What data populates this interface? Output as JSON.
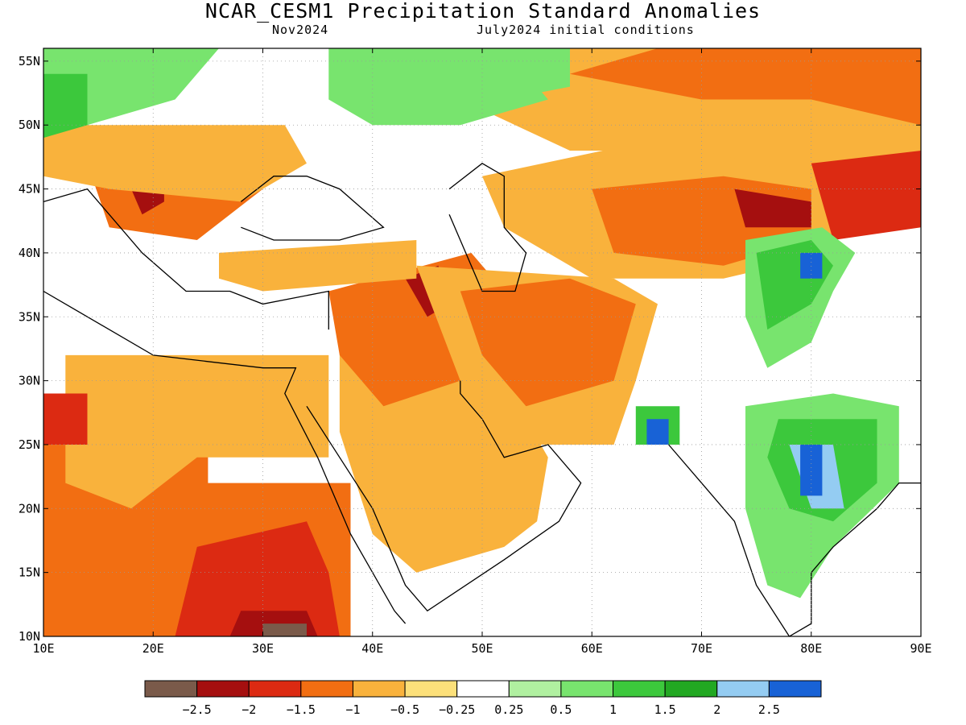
{
  "title": "NCAR_CESM1 Precipitation Standard Anomalies",
  "subtitle_left": "Nov2024",
  "subtitle_right": "July2024 initial conditions",
  "map": {
    "lon_range": [
      10,
      90
    ],
    "lat_range": [
      10,
      56
    ],
    "lon_ticks": [
      "10E",
      "20E",
      "30E",
      "40E",
      "50E",
      "60E",
      "70E",
      "80E",
      "90E"
    ],
    "lat_ticks": [
      "55N",
      "50N",
      "45N",
      "40N",
      "35N",
      "30N",
      "25N",
      "20N",
      "15N",
      "10N"
    ],
    "grid": true
  },
  "colors": {
    "brown": "#7a5a4a",
    "darkred": "#a50f0f",
    "red": "#dc2a12",
    "orange": "#f26e12",
    "lightorange": "#f9b23c",
    "yellow": "#fce07a",
    "white": "#ffffff",
    "lightgreen": "#b0f0a0",
    "green1": "#78e46e",
    "green2": "#3cc83c",
    "green3": "#22a822",
    "lightblue": "#94ccf2",
    "blue": "#1862d6"
  },
  "legend": {
    "swatches": [
      "#7a5a4a",
      "#a50f0f",
      "#dc2a12",
      "#f26e12",
      "#f9b23c",
      "#fce07a",
      "#ffffff",
      "#b0f0a0",
      "#78e46e",
      "#3cc83c",
      "#22a822",
      "#94ccf2",
      "#1862d6"
    ],
    "labels": [
      "−2.5",
      "−2",
      "−1.5",
      "−1",
      "−0.5",
      "−0.25",
      "0.25",
      "0.5",
      "1",
      "1.5",
      "2",
      "2.5"
    ]
  },
  "regions": [
    {
      "name": "west-africa-orange",
      "color": "orange",
      "pts": [
        [
          10,
          29
        ],
        [
          25,
          29
        ],
        [
          25,
          22
        ],
        [
          38,
          22
        ],
        [
          38,
          10
        ],
        [
          10,
          10
        ]
      ]
    },
    {
      "name": "sahara-lightorange",
      "color": "lightorange",
      "pts": [
        [
          12,
          32
        ],
        [
          36,
          32
        ],
        [
          36,
          24
        ],
        [
          24,
          24
        ],
        [
          18,
          20
        ],
        [
          12,
          22
        ]
      ]
    },
    {
      "name": "east-africa-red",
      "color": "red",
      "pts": [
        [
          24,
          17
        ],
        [
          34,
          19
        ],
        [
          36,
          15
        ],
        [
          37,
          10
        ],
        [
          22,
          10
        ]
      ]
    },
    {
      "name": "libya-red",
      "color": "red",
      "pts": [
        [
          10,
          29
        ],
        [
          14,
          29
        ],
        [
          14,
          25
        ],
        [
          10,
          25
        ]
      ]
    },
    {
      "name": "sudan-darkred",
      "color": "darkred",
      "pts": [
        [
          28,
          12
        ],
        [
          34,
          12
        ],
        [
          35,
          10
        ],
        [
          27,
          10
        ]
      ]
    },
    {
      "name": "sudan-brown",
      "color": "brown",
      "pts": [
        [
          30,
          11
        ],
        [
          34,
          11
        ],
        [
          34,
          10
        ],
        [
          30,
          10
        ]
      ]
    },
    {
      "name": "arabia-lightorange",
      "color": "lightorange",
      "pts": [
        [
          37,
          34
        ],
        [
          52,
          34
        ],
        [
          54,
          27
        ],
        [
          56,
          24
        ],
        [
          55,
          19
        ],
        [
          52,
          17
        ],
        [
          44,
          15
        ],
        [
          40,
          18
        ],
        [
          37,
          26
        ]
      ]
    },
    {
      "name": "levant-orange",
      "color": "orange",
      "pts": [
        [
          36,
          37
        ],
        [
          49,
          40
        ],
        [
          52,
          37
        ],
        [
          48,
          30
        ],
        [
          41,
          28
        ],
        [
          37,
          32
        ]
      ]
    },
    {
      "name": "iraq-darkred",
      "color": "darkred",
      "pts": [
        [
          43,
          38
        ],
        [
          46,
          39
        ],
        [
          47,
          36
        ],
        [
          45,
          35
        ]
      ]
    },
    {
      "name": "iran-lightorange",
      "color": "lightorange",
      "pts": [
        [
          44,
          39
        ],
        [
          62,
          38
        ],
        [
          66,
          36
        ],
        [
          64,
          30
        ],
        [
          62,
          25
        ],
        [
          50,
          25
        ],
        [
          48,
          30
        ]
      ]
    },
    {
      "name": "iran-orange",
      "color": "orange",
      "pts": [
        [
          48,
          37
        ],
        [
          58,
          38
        ],
        [
          64,
          36
        ],
        [
          62,
          30
        ],
        [
          54,
          28
        ],
        [
          50,
          32
        ]
      ]
    },
    {
      "name": "central-asia-lightorange",
      "color": "lightorange",
      "pts": [
        [
          50,
          46
        ],
        [
          72,
          50
        ],
        [
          82,
          48
        ],
        [
          82,
          40
        ],
        [
          72,
          38
        ],
        [
          60,
          38
        ],
        [
          52,
          42
        ]
      ]
    },
    {
      "name": "kazakhstan-orange",
      "color": "orange",
      "pts": [
        [
          60,
          45
        ],
        [
          72,
          46
        ],
        [
          80,
          45
        ],
        [
          80,
          41
        ],
        [
          72,
          39
        ],
        [
          62,
          40
        ]
      ]
    },
    {
      "name": "kazakhstan-darkred",
      "color": "darkred",
      "pts": [
        [
          73,
          45
        ],
        [
          80,
          44
        ],
        [
          80,
          42
        ],
        [
          74,
          42
        ]
      ]
    },
    {
      "name": "siberia-lightorange",
      "color": "lightorange",
      "pts": [
        [
          48,
          52
        ],
        [
          55,
          56
        ],
        [
          90,
          56
        ],
        [
          90,
          46
        ],
        [
          80,
          46
        ],
        [
          70,
          48
        ],
        [
          58,
          48
        ]
      ]
    },
    {
      "name": "siberia-orange",
      "color": "orange",
      "pts": [
        [
          58,
          54
        ],
        [
          66,
          56
        ],
        [
          90,
          56
        ],
        [
          90,
          50
        ],
        [
          80,
          52
        ],
        [
          70,
          52
        ]
      ]
    },
    {
      "name": "western-china-red",
      "color": "red",
      "pts": [
        [
          80,
          47
        ],
        [
          90,
          48
        ],
        [
          90,
          42
        ],
        [
          82,
          41
        ]
      ]
    },
    {
      "name": "balkans-orange",
      "color": "orange",
      "pts": [
        [
          14,
          47
        ],
        [
          28,
          48
        ],
        [
          30,
          45
        ],
        [
          24,
          41
        ],
        [
          16,
          42
        ]
      ]
    },
    {
      "name": "balkans-darkred",
      "color": "darkred",
      "pts": [
        [
          18,
          45
        ],
        [
          21,
          46
        ],
        [
          21,
          44
        ],
        [
          19,
          43
        ]
      ]
    },
    {
      "name": "europe-lightorange",
      "color": "lightorange",
      "pts": [
        [
          10,
          50
        ],
        [
          32,
          50
        ],
        [
          34,
          47
        ],
        [
          28,
          44
        ],
        [
          16,
          45
        ],
        [
          10,
          46
        ]
      ]
    },
    {
      "name": "turkey-lightorange",
      "color": "lightorange",
      "pts": [
        [
          26,
          40
        ],
        [
          44,
          41
        ],
        [
          44,
          38
        ],
        [
          30,
          37
        ],
        [
          26,
          38
        ]
      ]
    },
    {
      "name": "europe-green",
      "color": "green1",
      "pts": [
        [
          10,
          56
        ],
        [
          26,
          56
        ],
        [
          22,
          52
        ],
        [
          14,
          50
        ],
        [
          10,
          51
        ]
      ]
    },
    {
      "name": "europe-green2",
      "color": "green2",
      "pts": [
        [
          10,
          54
        ],
        [
          14,
          54
        ],
        [
          14,
          50
        ],
        [
          10,
          49
        ]
      ]
    },
    {
      "name": "russia-green",
      "color": "green1",
      "pts": [
        [
          36,
          56
        ],
        [
          52,
          56
        ],
        [
          56,
          52
        ],
        [
          48,
          50
        ],
        [
          40,
          50
        ],
        [
          36,
          52
        ]
      ]
    },
    {
      "name": "russia-green-east",
      "color": "green1",
      "pts": [
        [
          50,
          56
        ],
        [
          58,
          56
        ],
        [
          58,
          53
        ],
        [
          52,
          52
        ]
      ]
    },
    {
      "name": "himalaya-green1",
      "color": "green1",
      "pts": [
        [
          74,
          41
        ],
        [
          81,
          42
        ],
        [
          84,
          40
        ],
        [
          82,
          37
        ],
        [
          80,
          33
        ],
        [
          76,
          31
        ],
        [
          74,
          35
        ]
      ]
    },
    {
      "name": "himalaya-green2",
      "color": "green2",
      "pts": [
        [
          75,
          40
        ],
        [
          80,
          41
        ],
        [
          82,
          39
        ],
        [
          80,
          36
        ],
        [
          76,
          34
        ]
      ]
    },
    {
      "name": "himalaya-blue",
      "color": "blue",
      "pts": [
        [
          79,
          40
        ],
        [
          81,
          40
        ],
        [
          81,
          38
        ],
        [
          79,
          38
        ]
      ]
    },
    {
      "name": "india-green1",
      "color": "green1",
      "pts": [
        [
          74,
          28
        ],
        [
          82,
          29
        ],
        [
          88,
          28
        ],
        [
          88,
          22
        ],
        [
          82,
          17
        ],
        [
          79,
          13
        ],
        [
          76,
          14
        ],
        [
          74,
          20
        ]
      ]
    },
    {
      "name": "india-green2",
      "color": "green2",
      "pts": [
        [
          77,
          27
        ],
        [
          86,
          27
        ],
        [
          86,
          22
        ],
        [
          82,
          19
        ],
        [
          78,
          20
        ],
        [
          76,
          24
        ]
      ]
    },
    {
      "name": "india-lightblue",
      "color": "lightblue",
      "pts": [
        [
          78,
          25
        ],
        [
          82,
          25
        ],
        [
          83,
          20
        ],
        [
          80,
          20
        ]
      ]
    },
    {
      "name": "india-blue",
      "color": "blue",
      "pts": [
        [
          79,
          25
        ],
        [
          81,
          25
        ],
        [
          81,
          21
        ],
        [
          79,
          21
        ]
      ]
    },
    {
      "name": "pakistan-green",
      "color": "green2",
      "pts": [
        [
          64,
          28
        ],
        [
          68,
          28
        ],
        [
          68,
          25
        ],
        [
          64,
          25
        ]
      ]
    },
    {
      "name": "pakistan-blue",
      "color": "blue",
      "pts": [
        [
          65,
          27
        ],
        [
          67,
          27
        ],
        [
          67,
          25
        ],
        [
          65,
          25
        ]
      ]
    }
  ],
  "coastlines": [
    {
      "name": "arabia-coast",
      "pts": [
        [
          34,
          28
        ],
        [
          37,
          24
        ],
        [
          40,
          20
        ],
        [
          43,
          14
        ],
        [
          45,
          12
        ],
        [
          52,
          16
        ],
        [
          57,
          19
        ],
        [
          59,
          22
        ],
        [
          56,
          25
        ],
        [
          52,
          24
        ],
        [
          50,
          27
        ],
        [
          48,
          29
        ],
        [
          48,
          30
        ]
      ]
    },
    {
      "name": "africa-coast",
      "pts": [
        [
          10,
          37
        ],
        [
          20,
          32
        ],
        [
          30,
          31
        ],
        [
          33,
          31
        ],
        [
          32,
          29
        ],
        [
          35,
          24
        ],
        [
          38,
          18
        ],
        [
          42,
          12
        ],
        [
          43,
          11
        ]
      ]
    },
    {
      "name": "india-coast",
      "pts": [
        [
          67,
          25
        ],
        [
          70,
          22
        ],
        [
          73,
          19
        ],
        [
          75,
          14
        ],
        [
          78,
          10
        ],
        [
          80,
          11
        ],
        [
          80,
          15
        ],
        [
          82,
          17
        ],
        [
          86,
          20
        ],
        [
          88,
          22
        ],
        [
          90,
          22
        ]
      ]
    },
    {
      "name": "caspian",
      "pts": [
        [
          47,
          45
        ],
        [
          50,
          47
        ],
        [
          52,
          46
        ],
        [
          52,
          42
        ],
        [
          54,
          40
        ],
        [
          53,
          37
        ],
        [
          50,
          37
        ],
        [
          49,
          39
        ],
        [
          47,
          43
        ]
      ]
    },
    {
      "name": "black-sea",
      "pts": [
        [
          28,
          44
        ],
        [
          31,
          46
        ],
        [
          34,
          46
        ],
        [
          37,
          45
        ],
        [
          41,
          42
        ],
        [
          37,
          41
        ],
        [
          31,
          41
        ],
        [
          28,
          42
        ]
      ]
    },
    {
      "name": "mediterranean-north",
      "pts": [
        [
          10,
          44
        ],
        [
          14,
          45
        ],
        [
          19,
          40
        ],
        [
          23,
          37
        ],
        [
          27,
          37
        ],
        [
          30,
          36
        ],
        [
          36,
          37
        ],
        [
          36,
          34
        ]
      ]
    }
  ]
}
